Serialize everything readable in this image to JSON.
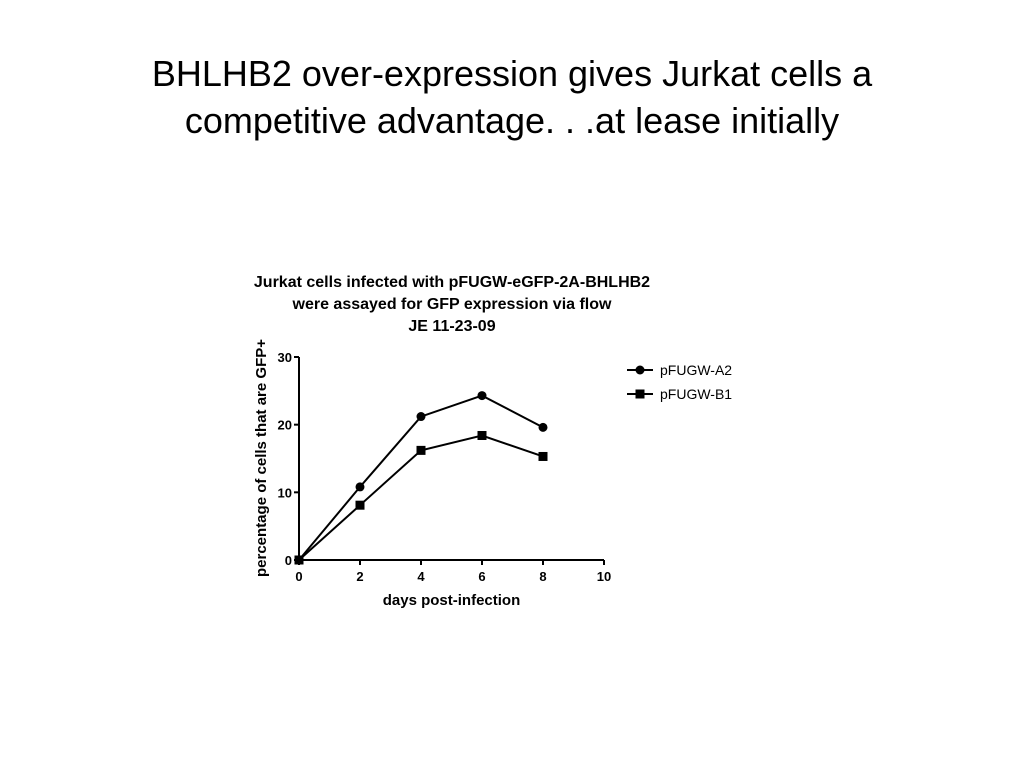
{
  "slide": {
    "title_line1": "BHLHB2 over-expression gives Jurkat cells a",
    "title_line2": "competitive advantage. . .at lease initially"
  },
  "chart_data": {
    "type": "line",
    "title_lines": [
      "Jurkat cells infected with pFUGW-eGFP-2A-BHLHB2",
      "were assayed for GFP expression via flow",
      "JE 11-23-09"
    ],
    "xlabel": "days post-infection",
    "ylabel": "percentage of cells that are GFP+",
    "xlim": [
      0,
      10
    ],
    "ylim": [
      0,
      30
    ],
    "x_ticks": [
      0,
      2,
      4,
      6,
      8,
      10
    ],
    "y_ticks": [
      0,
      10,
      20,
      30
    ],
    "grid": false,
    "legend_position": "right",
    "x": [
      0,
      2,
      4,
      6,
      8
    ],
    "series": [
      {
        "name": "pFUGW-A2",
        "marker": "circle",
        "values": [
          0,
          10.8,
          21.2,
          24.3,
          19.6
        ]
      },
      {
        "name": "pFUGW-B1",
        "marker": "square",
        "values": [
          0,
          8.1,
          16.2,
          18.4,
          15.3
        ]
      }
    ],
    "colors": {
      "line": "#000000",
      "text": "#000000"
    }
  }
}
